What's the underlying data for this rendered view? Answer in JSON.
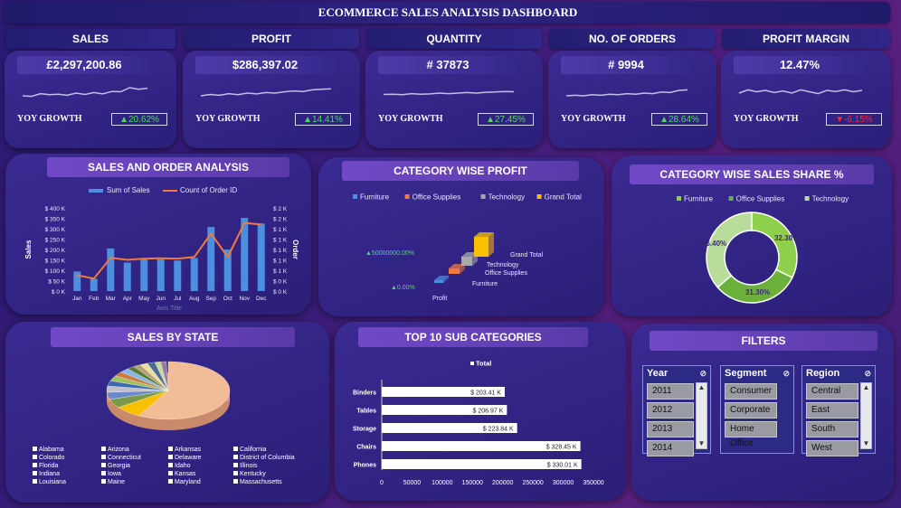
{
  "title": "ECOMMERCE SALES ANALYSIS DASHBOARD",
  "kpis": [
    {
      "label": "SALES",
      "value": "£2,297,200.86",
      "yoy_label": "YOY GROWTH",
      "yoy": "▲20.62%",
      "trend": "up",
      "spark": [
        0.4,
        0.38,
        0.48,
        0.44,
        0.46,
        0.42,
        0.5,
        0.45,
        0.52,
        0.47,
        0.56,
        0.55,
        0.7,
        0.64,
        0.68
      ]
    },
    {
      "label": "PROFIT",
      "value": "$286,397.02",
      "yoy_label": "YOY GROWTH",
      "yoy": "▲14.41%",
      "trend": "up",
      "spark": [
        0.4,
        0.45,
        0.42,
        0.48,
        0.44,
        0.5,
        0.47,
        0.52,
        0.5,
        0.55,
        0.58,
        0.56,
        0.62,
        0.64,
        0.66
      ]
    },
    {
      "label": "QUANTITY",
      "value": "# 37873",
      "yoy_label": "YOY GROWTH",
      "yoy": "▲27.45%",
      "trend": "up",
      "spark": [
        0.45,
        0.46,
        0.44,
        0.48,
        0.46,
        0.47,
        0.5,
        0.48,
        0.5,
        0.52,
        0.5,
        0.53,
        0.54,
        0.56,
        0.55
      ]
    },
    {
      "label": "NO. OF ORDERS",
      "value": "# 9994",
      "yoy_label": "YOY GROWTH",
      "yoy": "▲28.64%",
      "trend": "up",
      "spark": [
        0.4,
        0.42,
        0.4,
        0.44,
        0.42,
        0.46,
        0.44,
        0.48,
        0.46,
        0.5,
        0.48,
        0.54,
        0.52,
        0.6,
        0.62
      ]
    },
    {
      "label": "PROFIT MARGIN",
      "value": "12.47%",
      "yoy_label": "YOY GROWTH",
      "yoy": "▼-6.15%",
      "trend": "down",
      "spark": [
        0.5,
        0.62,
        0.55,
        0.6,
        0.52,
        0.58,
        0.5,
        0.62,
        0.55,
        0.48,
        0.6,
        0.56,
        0.62,
        0.55,
        0.6
      ]
    }
  ],
  "panels": {
    "sales_order": "SALES AND ORDER ANALYSIS",
    "category_profit": "CATEGORY WISE PROFIT",
    "category_share": "CATEGORY WISE SALES SHARE %",
    "sales_state": "SALES BY STATE",
    "top10": "TOP 10 SUB CATEGORIES",
    "filters": "FILTERS"
  },
  "chart_data": [
    {
      "type": "bar",
      "legend": [
        "Sum of Sales",
        "Count of Order ID"
      ],
      "categories": [
        "Jan",
        "Feb",
        "Mar",
        "Apr",
        "May",
        "Jun",
        "Jul",
        "Aug",
        "Sep",
        "Oct",
        "Nov",
        "Dec"
      ],
      "series": [
        {
          "name": "Sum of Sales",
          "axis": "left",
          "values": [
            94000,
            59000,
            205000,
            137000,
            155000,
            152000,
            147000,
            159000,
            308000,
            200000,
            352000,
            325000
          ]
        },
        {
          "name": "Count of Order ID",
          "axis": "right",
          "type": "line",
          "values": [
            380,
            300,
            800,
            750,
            780,
            790,
            780,
            820,
            1380,
            820,
            1640,
            1600
          ]
        }
      ],
      "yticks_left": [
        "$ 0 K",
        "$ 50 K",
        "$ 100 K",
        "$ 150 K",
        "$ 200 K",
        "$ 250 K",
        "$ 300 K",
        "$ 350 K",
        "$ 400 K"
      ],
      "yticks_right": [
        "$ 0 K",
        "$ 0 K",
        "$ 1 K",
        "$ 1 K",
        "$ 1 K",
        "$ 1 K",
        "$ 1 K",
        "$ 2 K",
        "$ 2 K"
      ],
      "ylim": [
        0,
        400000
      ],
      "ylim_right": [
        0,
        2000
      ],
      "xlabel": "Axis Title",
      "ylabel": "Sales",
      "ylabel_right": "Order"
    },
    {
      "type": "bar",
      "legend": [
        "Furniture",
        "Office Supplies",
        "Technology",
        "Grand Total"
      ],
      "legend_colors": [
        "#4c8ee0",
        "#f07a38",
        "#a8a8a8",
        "#f8c000"
      ],
      "categories": [
        "Profit"
      ],
      "series_labels": [
        "Furniture",
        "Office Supplies",
        "Technology",
        "Grand Total"
      ],
      "tick_labels": [
        "▲50000000.00%",
        "▲0.00%"
      ]
    },
    {
      "type": "pie",
      "legend": [
        "Furniture",
        "Office Supplies",
        "Technology"
      ],
      "values": [
        32.3,
        31.3,
        36.4
      ],
      "labels": [
        "32.30%",
        "31.30%",
        "36.40%"
      ],
      "colors": [
        "#8ed04b",
        "#6cb03c",
        "#b8dc9a"
      ]
    },
    {
      "type": "pie",
      "legend": [
        "Alabama",
        "Arizona",
        "Arkansas",
        "California",
        "Colorado",
        "Connecticut",
        "Delaware",
        "District of Columbia",
        "Florida",
        "Georgia",
        "Idaho",
        "Illinois",
        "Indiana",
        "Iowa",
        "Kansas",
        "Kentucky",
        "Louisiana",
        "Maine",
        "Maryland",
        "Massachusetts"
      ]
    },
    {
      "type": "bar",
      "legend": [
        "Total"
      ],
      "categories": [
        "Binders",
        "Tables",
        "Storage",
        "Chairs",
        "Phones"
      ],
      "values": [
        203410,
        206970,
        223840,
        328450,
        330010
      ],
      "data_labels": [
        "$ 203.41 K",
        "$ 206.97 K",
        "$ 223.84 K",
        "$ 328.45 K",
        "$ 330.01 K"
      ],
      "xticks": [
        "0",
        "50000",
        "100000",
        "150000",
        "200000",
        "250000",
        "300000",
        "350000"
      ],
      "xlim": [
        0,
        350000
      ]
    }
  ],
  "filters": [
    {
      "label": "Year",
      "items": [
        "2011",
        "2012",
        "2013",
        "2014"
      ]
    },
    {
      "label": "Segment",
      "items": [
        "Consumer",
        "Corporate",
        "Home Office"
      ]
    },
    {
      "label": "Region",
      "items": [
        "Central",
        "East",
        "South",
        "West"
      ]
    }
  ]
}
